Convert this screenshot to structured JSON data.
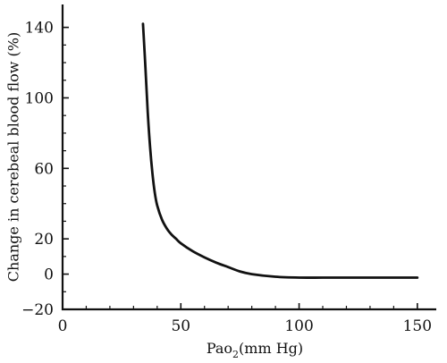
{
  "chart_data": {
    "type": "line",
    "title": "",
    "xlabel": "Pao",
    "xlabel_subscript": "2",
    "xlabel_unit": "(mm Hg)",
    "ylabel": "Change in cerebeal blood flow (%)",
    "xlim": [
      0,
      158
    ],
    "ylim": [
      -20,
      153
    ],
    "x_ticks": [
      0,
      50,
      100,
      150
    ],
    "x_minor_ticks": [
      10,
      20,
      30,
      40,
      60,
      70,
      80,
      90,
      110,
      120,
      130,
      140
    ],
    "y_ticks": [
      -20,
      0,
      20,
      60,
      100,
      140
    ],
    "y_minor_ticks": [
      -10,
      10,
      30,
      40,
      50,
      70,
      80,
      90,
      110,
      120,
      130
    ],
    "grid": false,
    "series": [
      {
        "x": [
          34,
          35,
          36,
          37,
          38,
          39,
          40,
          42,
          44,
          46,
          48,
          50,
          55,
          60,
          65,
          70,
          75,
          80,
          90,
          100,
          110,
          120,
          130,
          140,
          150
        ],
        "values": [
          142,
          118,
          92,
          72,
          57,
          46,
          39,
          31,
          26,
          22.5,
          20,
          17.5,
          13,
          9.5,
          6.5,
          4,
          1.5,
          0,
          -1.5,
          -2,
          -2,
          -2,
          -2,
          -2,
          -2
        ]
      }
    ]
  }
}
